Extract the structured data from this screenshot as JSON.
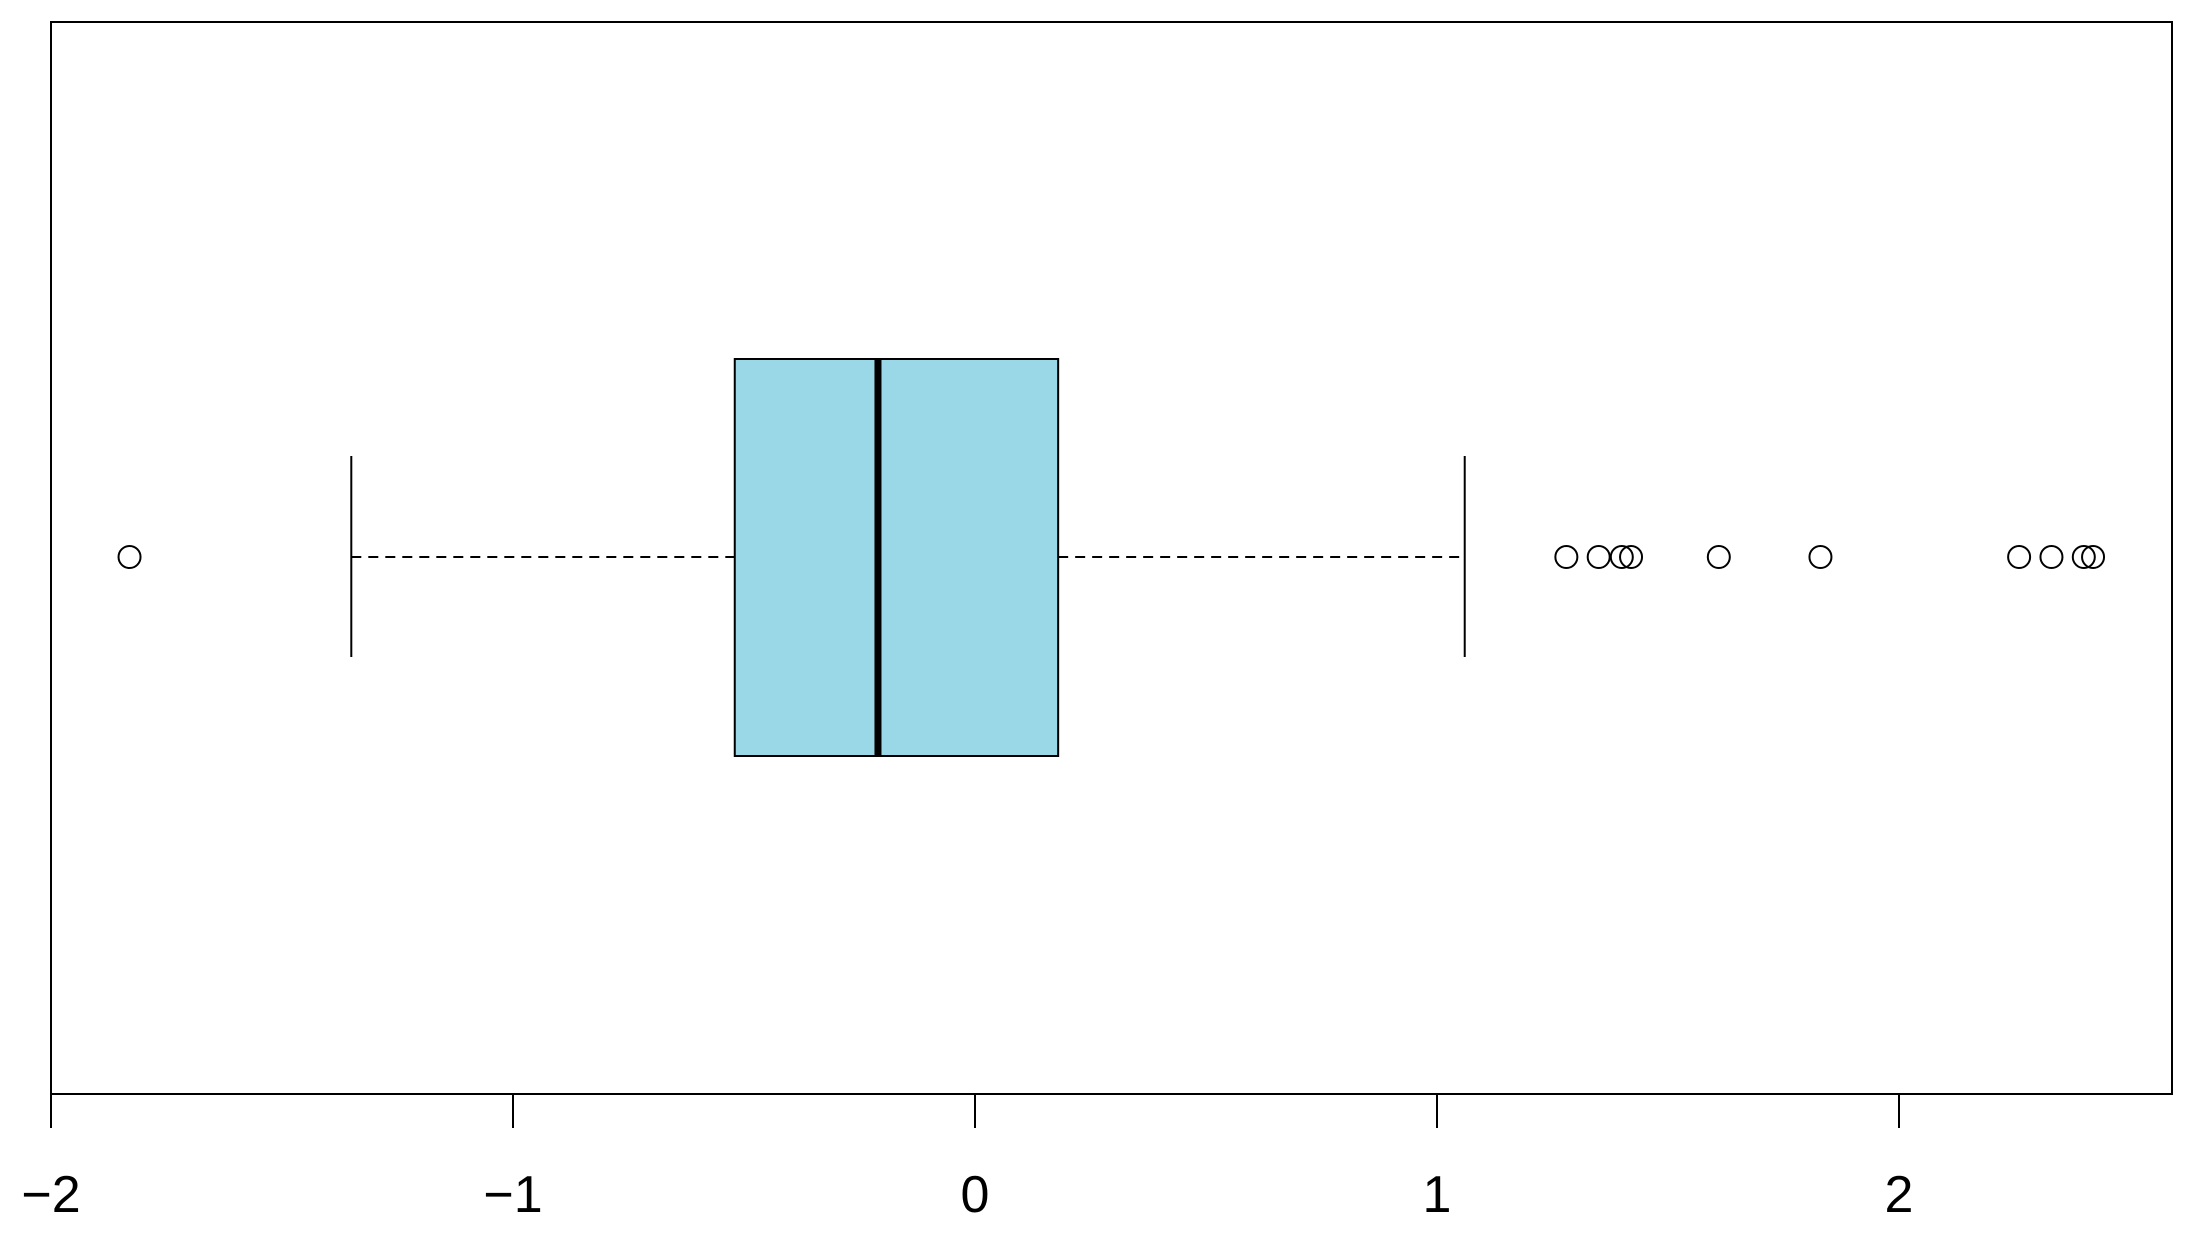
{
  "chart_data": {
    "type": "boxplot",
    "orientation": "horizontal",
    "title": "",
    "xlabel": "",
    "ylabel": "",
    "xlim": [
      -2,
      2.6
    ],
    "x_ticks": [
      -2,
      -1,
      0,
      1,
      2
    ],
    "x_tick_labels": [
      "−2",
      "−1",
      "0",
      "1",
      "2"
    ],
    "grid": false,
    "box": {
      "whisker_low": -1.35,
      "q1": -0.52,
      "median": -0.21,
      "q3": 0.18,
      "whisker_high": 1.06,
      "fill_color": "#9ad8e7",
      "line_color": "#000000"
    },
    "outliers": [
      -1.83,
      1.28,
      1.35,
      1.4,
      1.42,
      1.61,
      1.83,
      2.26,
      2.33,
      2.4,
      2.42
    ]
  }
}
